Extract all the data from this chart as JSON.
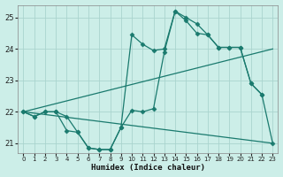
{
  "xlabel": "Humidex (Indice chaleur)",
  "bg_color": "#cceee8",
  "grid_color": "#aad4ce",
  "line_color": "#1a7a6e",
  "xlim": [
    -0.5,
    23.5
  ],
  "ylim": [
    20.7,
    25.4
  ],
  "yticks": [
    21,
    22,
    23,
    24,
    25
  ],
  "xticks": [
    0,
    1,
    2,
    3,
    4,
    5,
    6,
    7,
    8,
    9,
    10,
    11,
    12,
    13,
    14,
    15,
    16,
    17,
    18,
    19,
    20,
    21,
    22,
    23
  ],
  "series": [
    {
      "x": [
        0,
        1,
        2,
        3,
        4,
        5,
        6,
        7,
        8,
        9,
        10,
        11,
        12,
        13,
        14,
        15,
        16,
        17,
        18,
        19,
        20,
        21,
        22
      ],
      "y": [
        22.0,
        21.85,
        22.0,
        22.0,
        21.85,
        21.35,
        20.85,
        20.8,
        20.8,
        21.5,
        24.45,
        24.15,
        23.95,
        24.0,
        25.2,
        25.0,
        24.8,
        24.45,
        24.05,
        24.05,
        24.05,
        22.9,
        22.55
      ],
      "marker": "D",
      "markersize": 2.5,
      "linewidth": 0.9
    },
    {
      "x": [
        0,
        1,
        2,
        3,
        4,
        5,
        6,
        7,
        8,
        9,
        10,
        11,
        12,
        13,
        14,
        15,
        16,
        17,
        18,
        19,
        20,
        21,
        22,
        23
      ],
      "y": [
        22.0,
        21.85,
        22.0,
        22.0,
        21.4,
        21.35,
        20.85,
        20.8,
        20.8,
        21.5,
        22.05,
        22.0,
        22.1,
        23.9,
        25.2,
        24.9,
        24.5,
        24.45,
        24.05,
        24.05,
        24.05,
        22.9,
        22.55,
        21.0
      ],
      "marker": "D",
      "markersize": 2.5,
      "linewidth": 0.9
    },
    {
      "x": [
        0,
        23
      ],
      "y": [
        22.0,
        24.0
      ],
      "marker": null,
      "markersize": 0,
      "linewidth": 0.9
    },
    {
      "x": [
        0,
        23
      ],
      "y": [
        22.0,
        21.0
      ],
      "marker": null,
      "markersize": 0,
      "linewidth": 0.9
    }
  ]
}
